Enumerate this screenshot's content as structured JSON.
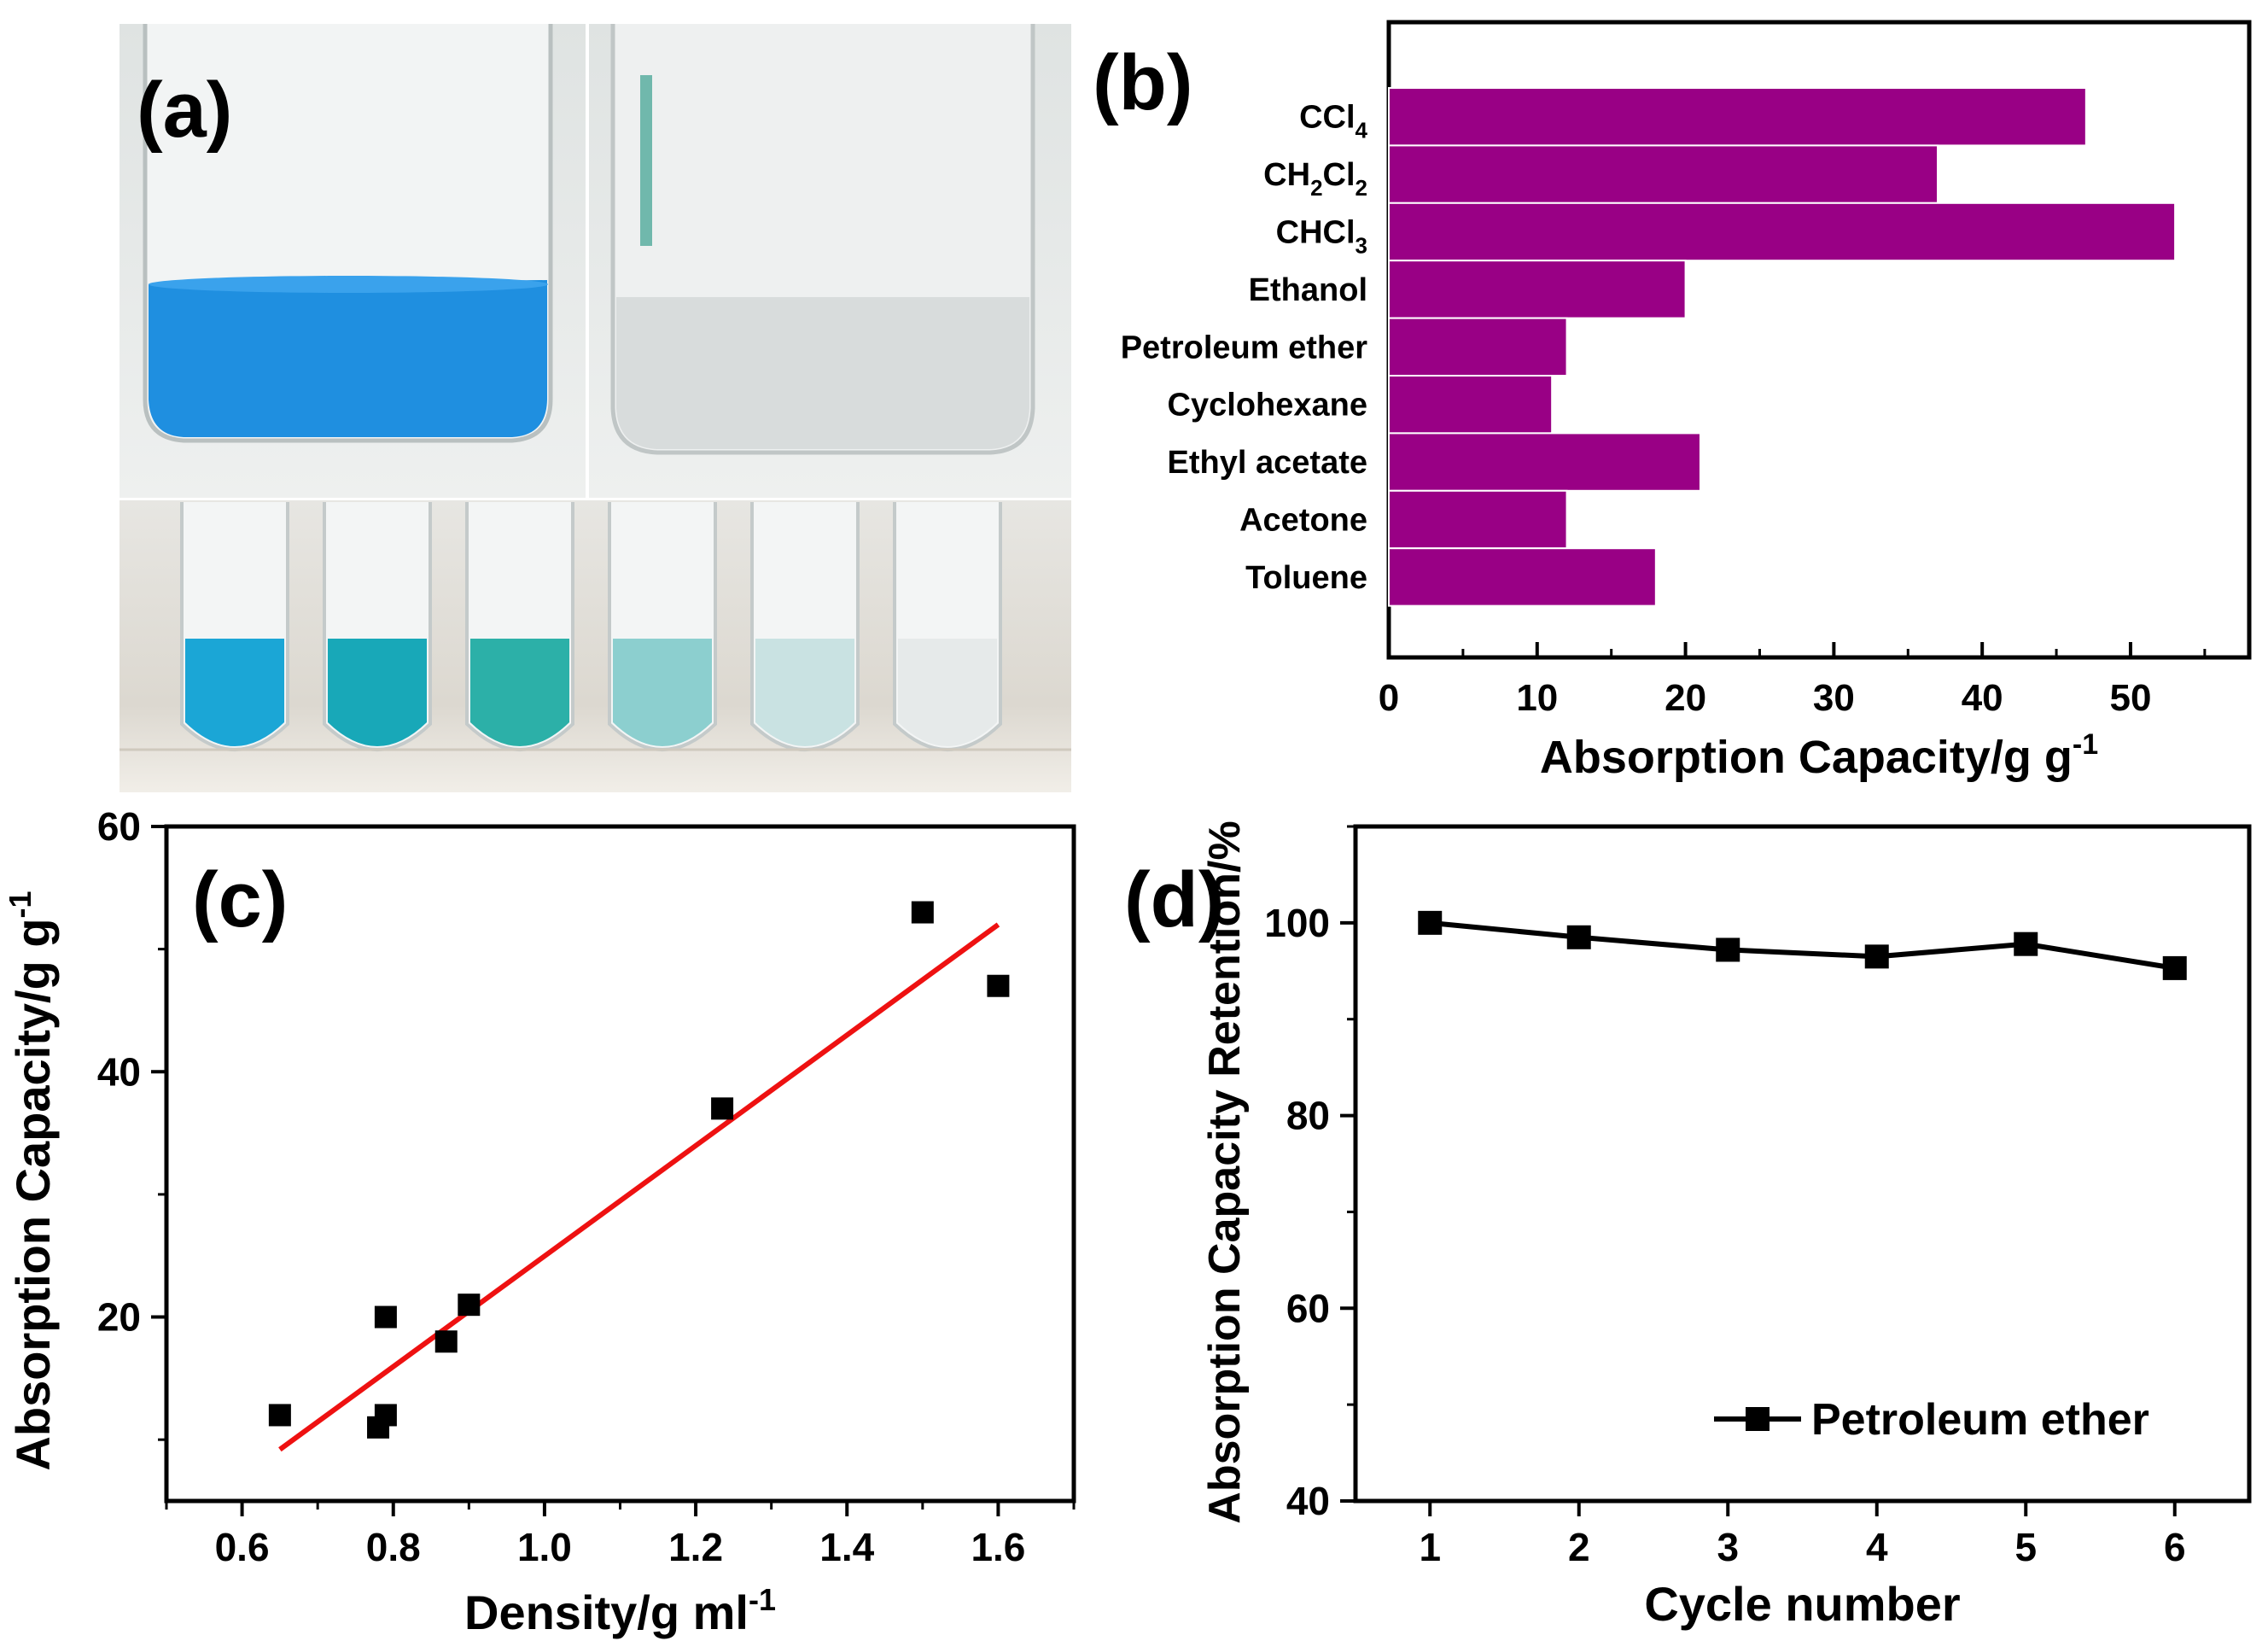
{
  "figure": {
    "panel_labels": {
      "a": "(a)",
      "b": "(b)",
      "c": "(c)",
      "d": "(d)"
    }
  },
  "photo": {
    "beaker_left_color": "#1f8fe0",
    "beaker_right_color": "#d8dcdc",
    "vial_colors": [
      "#1ba6d6",
      "#18a8b8",
      "#2cb0a8",
      "#8ccfcf",
      "#c9e2e2",
      "#e6eaea"
    ]
  },
  "chart_data": [
    {
      "panel": "b",
      "type": "bar",
      "orientation": "horizontal",
      "categories": [
        "CCl4",
        "CH2Cl2",
        "CHCl3",
        "Ethanol",
        "Petroleum ether",
        "Cyclohexane",
        "Ethyl acetate",
        "Acetone",
        "Toluene"
      ],
      "category_labels": [
        {
          "main": "CCl",
          "sub": "4",
          "tail": ""
        },
        {
          "main": "CH",
          "sub": "2",
          "tail": "Cl",
          "sub2": "2"
        },
        {
          "main": "CHCl",
          "sub": "3",
          "tail": ""
        },
        {
          "main": "Ethanol"
        },
        {
          "main": "Petroleum ether"
        },
        {
          "main": "Cyclohexane"
        },
        {
          "main": "Ethyl acetate"
        },
        {
          "main": "Acetone"
        },
        {
          "main": "Toluene"
        }
      ],
      "values": [
        47,
        37,
        53,
        20,
        12,
        11,
        21,
        12,
        18
      ],
      "xlabel": "Absorption Capacity/g g",
      "xlabel_sup": "-1",
      "xlim": [
        0,
        58
      ],
      "xticks": [
        0,
        10,
        20,
        30,
        40,
        50
      ],
      "bar_color": "#990085"
    },
    {
      "panel": "c",
      "type": "scatter",
      "x": [
        0.65,
        0.78,
        0.79,
        0.79,
        0.87,
        0.9,
        1.235,
        1.5,
        1.6
      ],
      "y": [
        12,
        11,
        12,
        20,
        18,
        21,
        37,
        53,
        47
      ],
      "fit_line": {
        "x": [
          0.65,
          1.6
        ],
        "y": [
          9.2,
          52
        ],
        "color": "#ee1111"
      },
      "xlabel": "Density/g ml",
      "xlabel_sup": "-1",
      "ylabel": "Absorption Capacity/g g",
      "ylabel_sup": "-1",
      "xlim": [
        0.5,
        1.7
      ],
      "ylim": [
        5,
        60
      ],
      "xticks": [
        0.6,
        0.8,
        1.0,
        1.2,
        1.4,
        1.6
      ],
      "yticks": [
        20,
        40,
        60
      ],
      "xtick_labels": [
        "0.6",
        "0.8",
        "1.0",
        "1.2",
        "1.4",
        "1.6"
      ],
      "ytick_labels": [
        "20",
        "40",
        "60"
      ]
    },
    {
      "panel": "d",
      "type": "line",
      "series": [
        {
          "name": "Petroleum ether",
          "x": [
            1,
            2,
            3,
            4,
            5,
            6
          ],
          "values": [
            100,
            98.5,
            97.2,
            96.5,
            97.8,
            95.3
          ]
        }
      ],
      "xlabel": "Cycle number",
      "ylabel": "Absorption Capacity Retention/%",
      "xlim": [
        0.5,
        6.5
      ],
      "ylim": [
        40,
        110
      ],
      "xticks": [
        1,
        2,
        3,
        4,
        5,
        6
      ],
      "yticks": [
        40,
        60,
        80,
        100
      ],
      "legend": "bottom-right"
    }
  ]
}
